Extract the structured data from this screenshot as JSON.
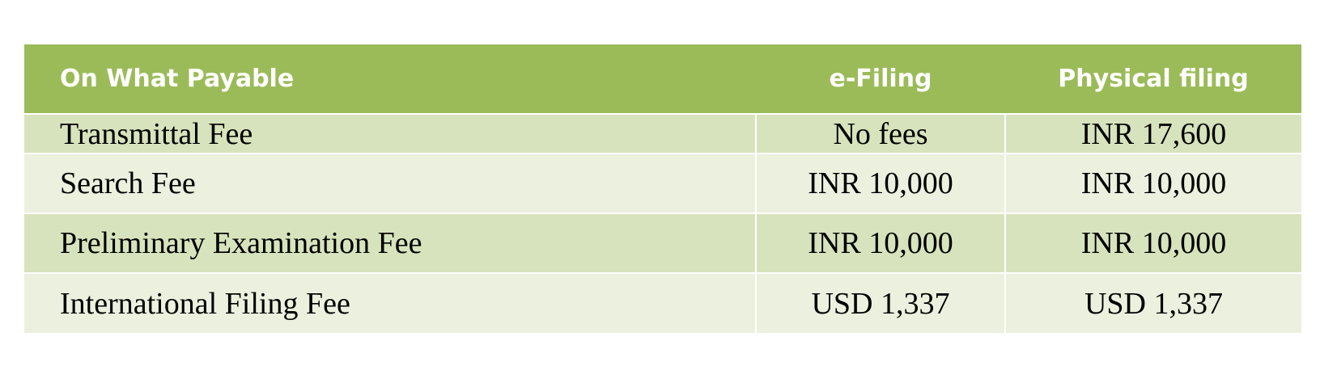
{
  "table": {
    "headers": [
      "On What Payable",
      "e-Filing",
      "Physical filing"
    ],
    "rows": [
      {
        "label": "Transmittal Fee",
        "efiling": "No fees",
        "physical": "INR 17,600"
      },
      {
        "label": "Search Fee",
        "efiling": "INR 10,000",
        "physical": "INR 10,000"
      },
      {
        "label": "Preliminary Examination Fee",
        "efiling": "INR 10,000",
        "physical": "INR 10,000"
      },
      {
        "label": "International Filing Fee",
        "efiling": "USD 1,337",
        "physical": "USD 1,337"
      }
    ]
  },
  "colors": {
    "header_bg": "#9bbb59",
    "row_odd_bg": "#d7e3bc",
    "row_even_bg": "#ebf1de",
    "header_text": "#ffffff"
  }
}
